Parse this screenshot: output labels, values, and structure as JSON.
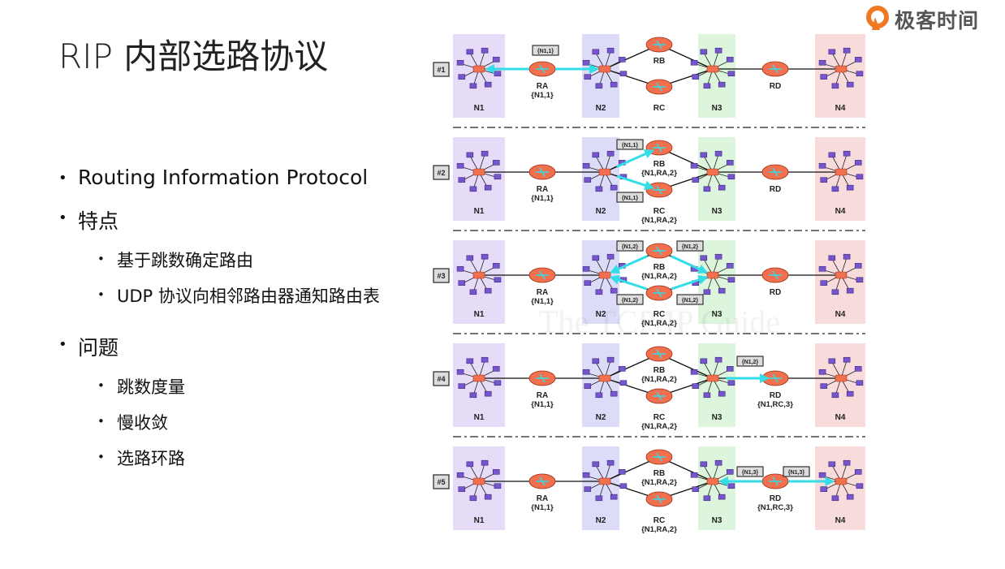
{
  "slide": {
    "title": "RIP 内部选路协议",
    "logo_text": "极客时间",
    "bullets": [
      {
        "text": "Routing Information Protocol",
        "children": []
      },
      {
        "text": "特点",
        "children": [
          "基于跳数确定路由",
          "UDP 协议向相邻路由器通知路由表"
        ]
      },
      {
        "text": "问题",
        "children": [
          "跳数度量",
          "慢收敛",
          "选路环路"
        ]
      }
    ]
  },
  "diagram": {
    "watermark": "The TCP/IP Guide",
    "colors": {
      "N1": "#e6dcf7",
      "N2": "#dcdcf8",
      "N3": "#dcf5dc",
      "N4": "#f8dcdc",
      "router": "#f07050",
      "arrow": "#33dde8",
      "host": "#7755cc"
    },
    "networks": [
      "N1",
      "N2",
      "N3",
      "N4"
    ],
    "routers": [
      "RA",
      "RB",
      "RC",
      "RD"
    ],
    "panels": [
      {
        "label": "#1",
        "tables": {
          "RA": "{N1,1}",
          "RB": "",
          "RC": "",
          "RD": ""
        },
        "messages": [
          {
            "text": "{N1,1}",
            "from": "RA",
            "to": [
              "N1",
              "N2"
            ]
          }
        ]
      },
      {
        "label": "#2",
        "tables": {
          "RA": "{N1,1}",
          "RB": "{N1,RA,2}",
          "RC": "{N1,RA,2}",
          "RD": ""
        },
        "messages": [
          {
            "text": "{N1,1}",
            "from": "N2",
            "to": [
              "RB"
            ]
          },
          {
            "text": "{N1,1}",
            "from": "N2",
            "to": [
              "RC"
            ]
          }
        ]
      },
      {
        "label": "#3",
        "tables": {
          "RA": "{N1,1}",
          "RB": "{N1,RA,2}",
          "RC": "{N1,RA,2}",
          "RD": ""
        },
        "messages": [
          {
            "text": "{N1,2}",
            "from": "RB",
            "to": [
              "N2"
            ]
          },
          {
            "text": "{N1,2}",
            "from": "RB",
            "to": [
              "N3"
            ]
          },
          {
            "text": "{N1,2}",
            "from": "RC",
            "to": [
              "N2"
            ]
          },
          {
            "text": "{N1,2}",
            "from": "RC",
            "to": [
              "N3"
            ]
          }
        ]
      },
      {
        "label": "#4",
        "tables": {
          "RA": "{N1,1}",
          "RB": "{N1,RA,2}",
          "RC": "{N1,RA,2}",
          "RD": "{N1,RC,3}"
        },
        "messages": [
          {
            "text": "{N1,2}",
            "from": "N3",
            "to": [
              "RD"
            ]
          }
        ]
      },
      {
        "label": "#5",
        "tables": {
          "RA": "{N1,1}",
          "RB": "{N1,RA,2}",
          "RC": "{N1,RA,2}",
          "RD": "{N1,RC,3}"
        },
        "messages": [
          {
            "text": "{N1,3}",
            "from": "RD",
            "to": [
              "N3"
            ]
          },
          {
            "text": "{N1,3}",
            "from": "RD",
            "to": [
              "N4"
            ]
          }
        ]
      }
    ]
  }
}
